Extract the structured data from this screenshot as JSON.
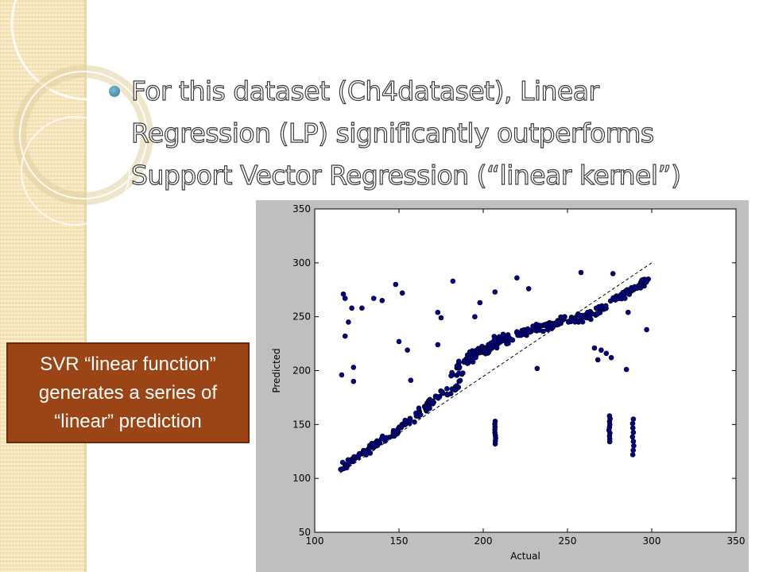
{
  "slide": {
    "bullet_text": "For this dataset (Ch4dataset), Linear Regression (LP) significantly outperforms Support Vector Regression (“linear kernel”)",
    "callout_lines": [
      "SVR “linear function”",
      "generates a series of",
      "“linear” prediction"
    ],
    "accent_color": "#2f7f9f",
    "callout_color": "#9b4416",
    "strip_color": "#f6e3b5"
  },
  "chart_data": {
    "type": "scatter",
    "title": "",
    "xlabel": "Actual",
    "ylabel": "Predicted",
    "xlim": [
      100,
      350
    ],
    "ylim": [
      50,
      350
    ],
    "xticks": [
      100,
      150,
      200,
      250,
      300,
      350
    ],
    "yticks": [
      50,
      100,
      150,
      200,
      250,
      300,
      350
    ],
    "grid": false,
    "marker_color": "#00008b",
    "reference_line": {
      "from": [
        115,
        105
      ],
      "to": [
        300,
        300
      ],
      "style": "dashed"
    },
    "groups": [
      {
        "name": "main_trend",
        "x_range": [
          115,
          300
        ],
        "knots_x": [
          115,
          150,
          175,
          180,
          185,
          190,
          200,
          210,
          230,
          250,
          265,
          280,
          300
        ],
        "knots_y": [
          110,
          145,
          178,
          180,
          185,
          212,
          220,
          228,
          238,
          247,
          252,
          268,
          285
        ],
        "n": 360,
        "spread": 6
      },
      {
        "name": "upper_bulge",
        "x_range": [
          180,
          212
        ],
        "knots_x": [
          180,
          190,
          200,
          212
        ],
        "knots_y": [
          195,
          210,
          220,
          230
        ],
        "n": 60,
        "spread": 8
      },
      {
        "name": "vertical_x207",
        "x": 207,
        "y_range": [
          132,
          153
        ],
        "n": 9
      },
      {
        "name": "vertical_x275",
        "x": 275,
        "y_range": [
          134,
          158
        ],
        "n": 10
      },
      {
        "name": "vertical_x289",
        "x": 289,
        "y_range": [
          122,
          155
        ],
        "n": 9
      }
    ],
    "outliers": [
      {
        "x": 116,
        "y": 196
      },
      {
        "x": 117,
        "y": 271
      },
      {
        "x": 118,
        "y": 267
      },
      {
        "x": 118,
        "y": 232
      },
      {
        "x": 120,
        "y": 245
      },
      {
        "x": 122,
        "y": 258
      },
      {
        "x": 123,
        "y": 203
      },
      {
        "x": 123,
        "y": 190
      },
      {
        "x": 128,
        "y": 258
      },
      {
        "x": 135,
        "y": 267
      },
      {
        "x": 140,
        "y": 265
      },
      {
        "x": 148,
        "y": 280
      },
      {
        "x": 150,
        "y": 227
      },
      {
        "x": 152,
        "y": 272
      },
      {
        "x": 155,
        "y": 219
      },
      {
        "x": 157,
        "y": 191
      },
      {
        "x": 173,
        "y": 254
      },
      {
        "x": 173,
        "y": 224
      },
      {
        "x": 175,
        "y": 249
      },
      {
        "x": 182,
        "y": 283
      },
      {
        "x": 195,
        "y": 250
      },
      {
        "x": 198,
        "y": 263
      },
      {
        "x": 201,
        "y": 218
      },
      {
        "x": 207,
        "y": 273
      },
      {
        "x": 220,
        "y": 286
      },
      {
        "x": 227,
        "y": 276
      },
      {
        "x": 232,
        "y": 202
      },
      {
        "x": 258,
        "y": 291
      },
      {
        "x": 262,
        "y": 254
      },
      {
        "x": 266,
        "y": 221
      },
      {
        "x": 268,
        "y": 210
      },
      {
        "x": 270,
        "y": 219
      },
      {
        "x": 273,
        "y": 216
      },
      {
        "x": 276,
        "y": 212
      },
      {
        "x": 277,
        "y": 290
      },
      {
        "x": 285,
        "y": 201
      },
      {
        "x": 286,
        "y": 254
      },
      {
        "x": 297,
        "y": 238
      }
    ]
  }
}
